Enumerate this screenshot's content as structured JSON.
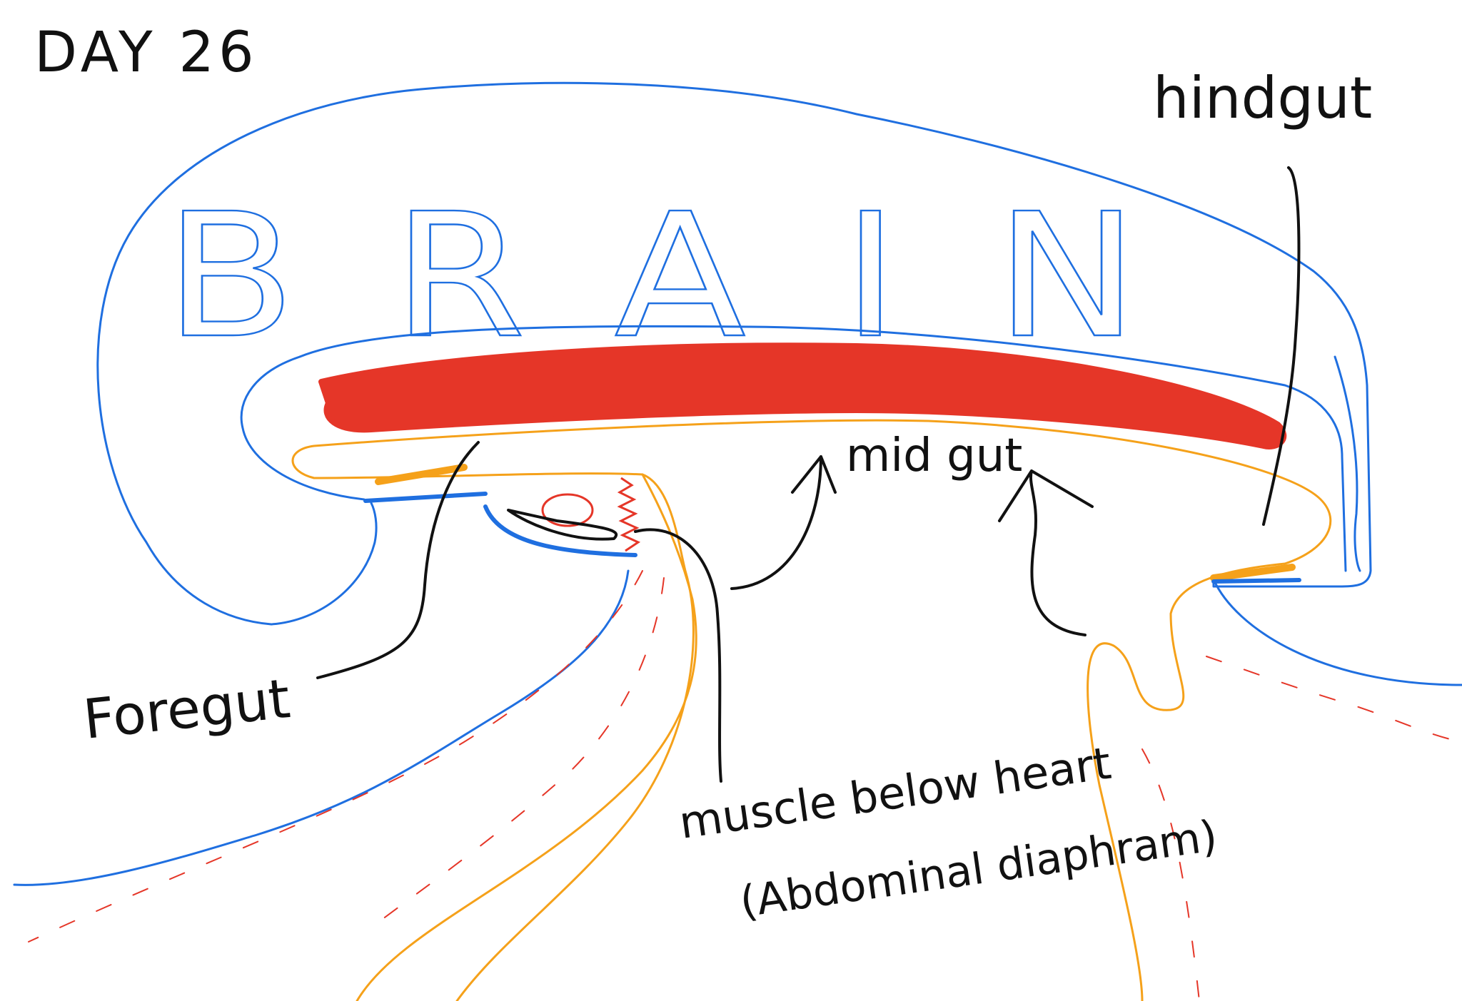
{
  "labels": {
    "day": "DAY 26",
    "brain": "BRAIN",
    "hindgut": "hindgut",
    "midgut": "mid gut",
    "foregut": "Foregut",
    "muscle": "muscle below heart",
    "diaphragm": "(Abdominal diaphram)"
  },
  "colors": {
    "outline": "#1f6fe0",
    "gut_tube": "#f5a11a",
    "heart_tube": "#e53628",
    "ink": "#111111"
  }
}
